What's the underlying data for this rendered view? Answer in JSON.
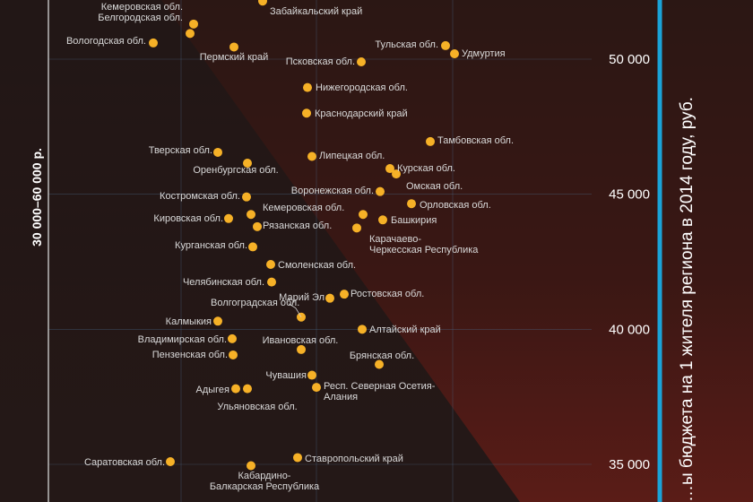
{
  "chart_data": {
    "type": "scatter",
    "ylabel": "…ы бюджета на 1 жителя региона в 2014 году, руб.",
    "band_label": "30 000–60 000 р.",
    "y_ticks": [
      {
        "value": 50000,
        "label": "50 000"
      },
      {
        "value": 45000,
        "label": "45 000"
      },
      {
        "value": 40000,
        "label": "40 000"
      },
      {
        "value": 35000,
        "label": "35 000"
      }
    ],
    "ylim": [
      34000,
      52850
    ],
    "marker_color": "#f6b127",
    "axis_color": "#1aa3d8",
    "points": [
      {
        "label": "",
        "y": 52800
      },
      {
        "label": "",
        "y": 52750
      },
      {
        "label": "Кемеровская обл.",
        "y": 51300
      },
      {
        "label": "Белгородская обл.",
        "y": 50950
      },
      {
        "label": "Забайкальский край",
        "y": 52150
      },
      {
        "label": "Вологодская обл.",
        "y": 50600
      },
      {
        "label": "Пермский край",
        "y": 50450
      },
      {
        "label": "Тульская обл.",
        "y": 50500
      },
      {
        "label": "Удмуртия",
        "y": 50200
      },
      {
        "label": "Псковская обл.",
        "y": 49900
      },
      {
        "label": "Нижегородская обл.",
        "y": 48950
      },
      {
        "label": "Краснодарский край",
        "y": 48000
      },
      {
        "label": "Тамбовская обл.",
        "y": 46950
      },
      {
        "label": "Тверская обл.",
        "y": 46550
      },
      {
        "label": "Липецкая обл.",
        "y": 46400
      },
      {
        "label": "Оренбургская обл.",
        "y": 46150
      },
      {
        "label": "Курская обл.",
        "y": 45950
      },
      {
        "label": "Омская обл.",
        "y": 45750
      },
      {
        "label": "Воронежская обл.",
        "y": 45100
      },
      {
        "label": "Костромская обл.",
        "y": 44900
      },
      {
        "label": "Орловская обл.",
        "y": 44650
      },
      {
        "label": "Кемеровская обл.",
        "y": 44250
      },
      {
        "label": "Кировская обл.",
        "y": 44100
      },
      {
        "label": "",
        "y": 44250
      },
      {
        "label": "Башкирия",
        "y": 44050
      },
      {
        "label": "Рязанская обл.",
        "y": 43800
      },
      {
        "label": "Карачаево-Черкесская Республика",
        "y": 43750
      },
      {
        "label": "Курганская обл.",
        "y": 43050
      },
      {
        "label": "Смоленская обл.",
        "y": 42400
      },
      {
        "label": "Челябинская обл.",
        "y": 41750
      },
      {
        "label": "Ростовская обл.",
        "y": 41300
      },
      {
        "label": "Марий Эл",
        "y": 41150
      },
      {
        "label": "Волгоградская обл.",
        "y": 40450
      },
      {
        "label": "Калмыкия",
        "y": 40300
      },
      {
        "label": "Алтайский край",
        "y": 40000
      },
      {
        "label": "Владимирская обл.",
        "y": 39650
      },
      {
        "label": "Ивановская обл.",
        "y": 39250
      },
      {
        "label": "Пензенская обл.",
        "y": 39050
      },
      {
        "label": "Брянская обл.",
        "y": 38700
      },
      {
        "label": "Чувашия",
        "y": 38300
      },
      {
        "label": "Респ. Северная Осетия-Алания",
        "y": 37850
      },
      {
        "label": "Адыгея",
        "y": 37800
      },
      {
        "label": "Ульяновская обл.",
        "y": 37800
      },
      {
        "label": "Ставропольский край",
        "y": 35250
      },
      {
        "label": "Саратовская обл.",
        "y": 35100
      },
      {
        "label": "Кабардино-Балкарская Республика",
        "y": 34950
      }
    ]
  }
}
